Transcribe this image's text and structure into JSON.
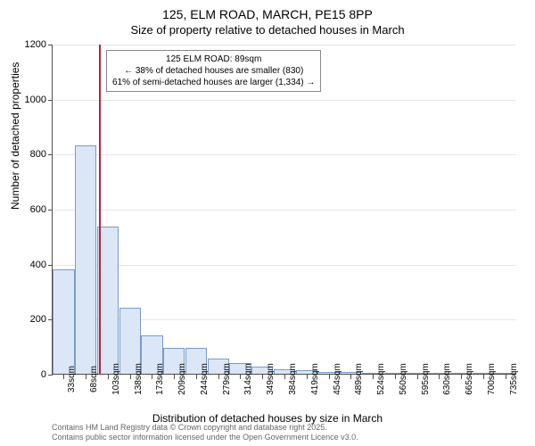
{
  "title": {
    "line1": "125, ELM ROAD, MARCH, PE15 8PP",
    "line2": "Size of property relative to detached houses in March"
  },
  "chart": {
    "type": "histogram",
    "ylabel": "Number of detached properties",
    "xlabel": "Distribution of detached houses by size in March",
    "ylim": [
      0,
      1200
    ],
    "ytick_step": 200,
    "yticks": [
      0,
      200,
      400,
      600,
      800,
      1000,
      1200
    ],
    "xtick_labels": [
      "33sqm",
      "68sqm",
      "103sqm",
      "138sqm",
      "173sqm",
      "209sqm",
      "244sqm",
      "279sqm",
      "314sqm",
      "349sqm",
      "384sqm",
      "419sqm",
      "454sqm",
      "489sqm",
      "524sqm",
      "560sqm",
      "595sqm",
      "630sqm",
      "665sqm",
      "700sqm",
      "735sqm"
    ],
    "bars": [
      380,
      830,
      535,
      240,
      140,
      95,
      95,
      55,
      40,
      25,
      15,
      12,
      8,
      6,
      4,
      3,
      2,
      2,
      1,
      1,
      1
    ],
    "bar_fill": "#dbe7f6",
    "bar_border": "#7a9ac8",
    "bar_width": 0.98,
    "marker_line_color": "#c41e3a",
    "marker_x_index": 1.6,
    "grid_color": "#e5e5e5",
    "axis_color": "#4d4d4d",
    "background_color": "#ffffff"
  },
  "annotation": {
    "line1": "125 ELM ROAD: 89sqm",
    "line2": "← 38% of detached houses are smaller (830)",
    "line3": "61% of semi-detached houses are larger (1,334) →"
  },
  "attribution": {
    "line1": "Contains HM Land Registry data © Crown copyright and database right 2025.",
    "line2": "Contains public sector information licensed under the Open Government Licence v3.0."
  }
}
